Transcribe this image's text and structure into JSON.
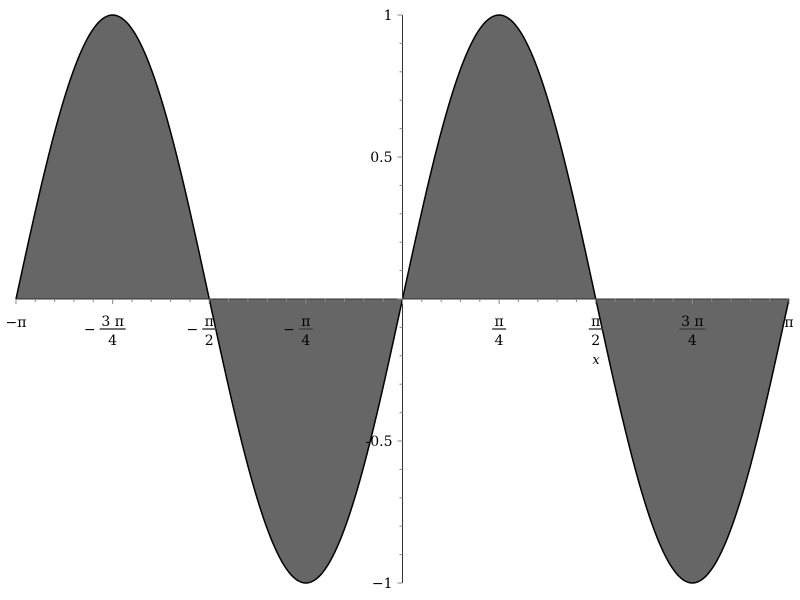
{
  "chart_data": {
    "type": "area",
    "function": "sin(2x)",
    "xlabel": "x",
    "ylabel": "",
    "xlim": [
      -3.14159,
      3.14159
    ],
    "ylim": [
      -1,
      1
    ],
    "grid": false,
    "fill_color": "#666666",
    "line_color": "#000000",
    "x_ticks": [
      {
        "value": -3.14159,
        "sign": "-",
        "num": "π",
        "den": ""
      },
      {
        "value": -2.35619,
        "sign": "-",
        "num": "3 π",
        "den": "4"
      },
      {
        "value": -1.5708,
        "sign": "-",
        "num": "π",
        "den": "2"
      },
      {
        "value": -0.7854,
        "sign": "-",
        "num": "π",
        "den": "4"
      },
      {
        "value": 0.7854,
        "sign": "",
        "num": "π",
        "den": "4"
      },
      {
        "value": 1.5708,
        "sign": "",
        "num": "π",
        "den": "2"
      },
      {
        "value": 2.35619,
        "sign": "",
        "num": "3 π",
        "den": "4"
      },
      {
        "value": 3.14159,
        "sign": "",
        "num": "π",
        "den": ""
      }
    ],
    "y_ticks": [
      {
        "value": 1,
        "label": "1"
      },
      {
        "value": 0.5,
        "label": "0.5"
      },
      {
        "value": -0.5,
        "label": "-0.5"
      },
      {
        "value": -1,
        "label": "−1"
      }
    ]
  }
}
